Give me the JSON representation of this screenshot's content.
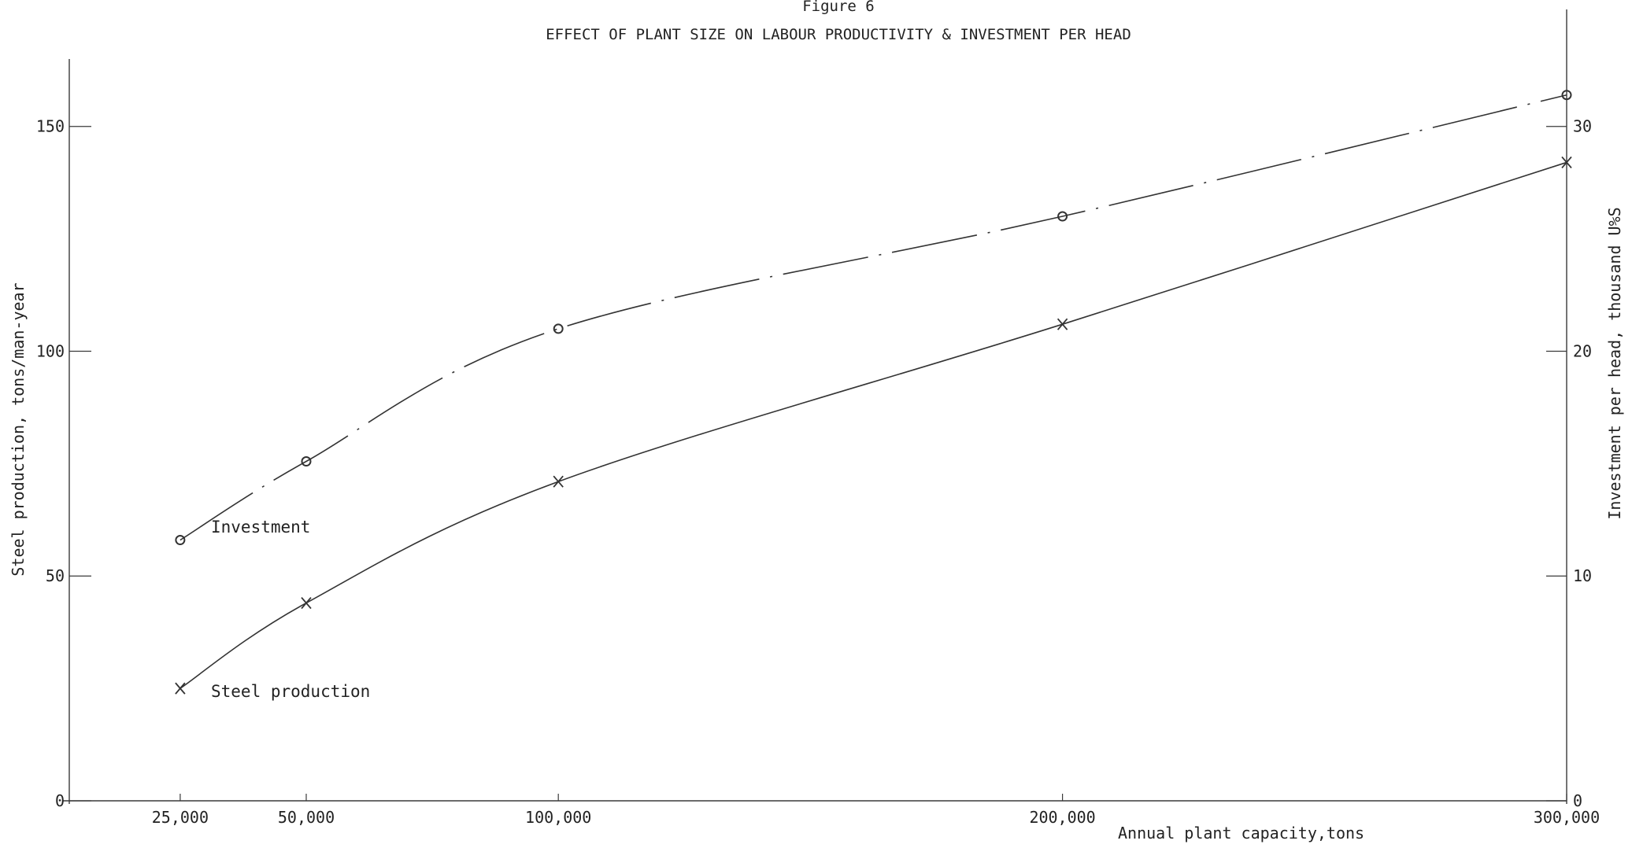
{
  "chart_data": {
    "type": "line",
    "figure_label": "Figure 6",
    "title": "EFFECT OF PLANT SIZE ON LABOUR PRODUCTIVITY & INVESTMENT PER HEAD",
    "xlabel": "Annual plant capacity,tons",
    "ylabel_left": "Steel production, tons/man-year",
    "ylabel_right": "Investment per head, thousand U%S",
    "x_ticks": [
      25000,
      50000,
      100000,
      200000,
      300000
    ],
    "x_tick_labels": [
      "25,000",
      "50,000",
      "100,000",
      "200,000",
      "300,000"
    ],
    "y_left_ticks": [
      0,
      50,
      100,
      150
    ],
    "y_left_tick_labels": [
      "0",
      "50",
      "100",
      "150"
    ],
    "y_right_ticks": [
      0,
      10,
      20,
      30
    ],
    "y_right_tick_labels": [
      "0",
      "10",
      "20",
      "30"
    ],
    "xlim": [
      3000,
      300000
    ],
    "ylim_left": [
      0,
      165
    ],
    "ylim_right": [
      0,
      33
    ],
    "grid": false,
    "series": [
      {
        "name": "Investment",
        "axis": "right",
        "line_style": "dash-dot",
        "marker": "circle",
        "x": [
          25000,
          50000,
          100000,
          200000,
          300000
        ],
        "y": [
          11.6,
          15.1,
          21.0,
          26.0,
          31.4
        ]
      },
      {
        "name": "Steel production",
        "axis": "left",
        "line_style": "solid",
        "marker": "cross",
        "x": [
          25000,
          50000,
          100000,
          200000,
          300000
        ],
        "y": [
          25,
          44,
          71,
          106,
          142
        ]
      }
    ]
  }
}
